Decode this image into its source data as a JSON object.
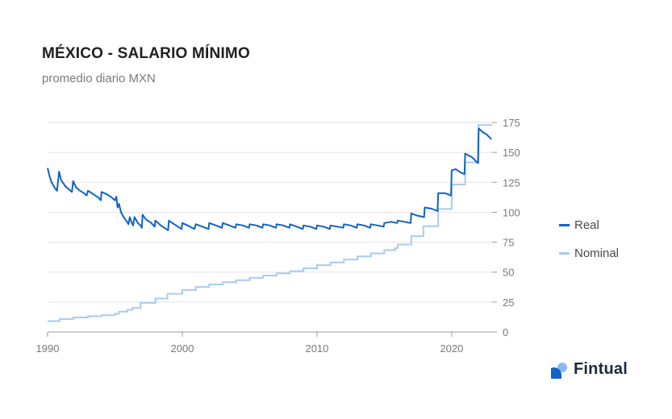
{
  "title": "MÉXICO - SALARIO MÍNIMO",
  "subtitle": "promedio diario MXN",
  "brand": {
    "name": "Fintual",
    "icon": "fintual-logo-icon"
  },
  "colors": {
    "real": "#1262c5",
    "nominal": "#a9cbf1",
    "grid": "#e2e2e2",
    "axis": "#7a7a7a"
  },
  "legend": [
    {
      "label": "Real",
      "color": "#1262c5"
    },
    {
      "label": "Nominal",
      "color": "#a9cbf1"
    }
  ],
  "chart_data": {
    "type": "line",
    "title": "MÉXICO - SALARIO MÍNIMO",
    "subtitle": "promedio diario MXN",
    "xlim": [
      1990,
      2023
    ],
    "ylim": [
      0,
      175
    ],
    "x_ticks": [
      1990,
      2000,
      2010,
      2020
    ],
    "y_ticks": [
      0,
      25,
      50,
      75,
      100,
      125,
      150,
      175
    ],
    "grid": "horizontal",
    "legend_position": "right",
    "series": [
      {
        "name": "Real",
        "color": "#1262c5",
        "points": [
          [
            1990.0,
            137
          ],
          [
            1990.15,
            130
          ],
          [
            1990.3,
            125
          ],
          [
            1990.55,
            120
          ],
          [
            1990.7,
            118
          ],
          [
            1990.85,
            134
          ],
          [
            1991.0,
            127
          ],
          [
            1991.3,
            122
          ],
          [
            1991.6,
            119
          ],
          [
            1991.8,
            117
          ],
          [
            1991.9,
            126
          ],
          [
            1992.1,
            121
          ],
          [
            1992.4,
            118
          ],
          [
            1992.7,
            116
          ],
          [
            1992.9,
            114
          ],
          [
            1993.0,
            118
          ],
          [
            1993.4,
            115
          ],
          [
            1993.8,
            112
          ],
          [
            1993.95,
            110
          ],
          [
            1994.0,
            117
          ],
          [
            1994.4,
            115
          ],
          [
            1994.8,
            112
          ],
          [
            1995.0,
            110
          ],
          [
            1995.1,
            113
          ],
          [
            1995.2,
            104
          ],
          [
            1995.3,
            107
          ],
          [
            1995.45,
            100
          ],
          [
            1995.7,
            95
          ],
          [
            1995.9,
            92
          ],
          [
            1996.0,
            90
          ],
          [
            1996.1,
            96
          ],
          [
            1996.25,
            91
          ],
          [
            1996.35,
            89
          ],
          [
            1996.45,
            96
          ],
          [
            1996.7,
            91
          ],
          [
            1996.9,
            89
          ],
          [
            1997.0,
            87
          ],
          [
            1997.05,
            98
          ],
          [
            1997.3,
            94
          ],
          [
            1997.7,
            91
          ],
          [
            1997.95,
            88
          ],
          [
            1998.0,
            93
          ],
          [
            1998.4,
            89
          ],
          [
            1998.8,
            86
          ],
          [
            1998.95,
            85
          ],
          [
            1999.0,
            93
          ],
          [
            1999.4,
            90
          ],
          [
            1999.8,
            87
          ],
          [
            1999.95,
            86
          ],
          [
            2000.0,
            91
          ],
          [
            2000.4,
            89
          ],
          [
            2000.9,
            86
          ],
          [
            2001.0,
            90
          ],
          [
            2001.5,
            88
          ],
          [
            2001.95,
            86
          ],
          [
            2002.0,
            91
          ],
          [
            2002.5,
            89
          ],
          [
            2002.95,
            87
          ],
          [
            2003.0,
            91
          ],
          [
            2003.5,
            89
          ],
          [
            2003.95,
            87
          ],
          [
            2004.0,
            90
          ],
          [
            2004.5,
            89
          ],
          [
            2004.95,
            87
          ],
          [
            2005.0,
            90
          ],
          [
            2005.5,
            89
          ],
          [
            2005.95,
            87
          ],
          [
            2006.0,
            90
          ],
          [
            2006.5,
            89
          ],
          [
            2006.95,
            87
          ],
          [
            2007.0,
            90
          ],
          [
            2007.5,
            89
          ],
          [
            2007.95,
            87
          ],
          [
            2008.0,
            90
          ],
          [
            2008.5,
            88
          ],
          [
            2008.95,
            86
          ],
          [
            2009.0,
            89
          ],
          [
            2009.5,
            88
          ],
          [
            2009.95,
            86
          ],
          [
            2010.0,
            89
          ],
          [
            2010.5,
            88
          ],
          [
            2010.95,
            86
          ],
          [
            2011.0,
            89
          ],
          [
            2011.5,
            88
          ],
          [
            2011.95,
            87
          ],
          [
            2012.0,
            90
          ],
          [
            2012.5,
            89
          ],
          [
            2012.95,
            87
          ],
          [
            2013.0,
            90
          ],
          [
            2013.5,
            89
          ],
          [
            2013.95,
            87
          ],
          [
            2014.0,
            90
          ],
          [
            2014.5,
            89
          ],
          [
            2014.95,
            88
          ],
          [
            2015.0,
            91
          ],
          [
            2015.5,
            92
          ],
          [
            2015.95,
            91
          ],
          [
            2016.0,
            93
          ],
          [
            2016.5,
            92
          ],
          [
            2016.95,
            91
          ],
          [
            2017.0,
            99
          ],
          [
            2017.5,
            97
          ],
          [
            2017.95,
            96
          ],
          [
            2018.0,
            104
          ],
          [
            2018.5,
            103
          ],
          [
            2018.95,
            101
          ],
          [
            2019.0,
            116
          ],
          [
            2019.5,
            116
          ],
          [
            2019.95,
            114
          ],
          [
            2020.0,
            135
          ],
          [
            2020.3,
            136
          ],
          [
            2020.7,
            133
          ],
          [
            2020.95,
            132
          ],
          [
            2021.0,
            149
          ],
          [
            2021.5,
            146
          ],
          [
            2021.95,
            141
          ],
          [
            2022.0,
            170
          ],
          [
            2022.3,
            167
          ],
          [
            2022.6,
            165
          ],
          [
            2022.95,
            161
          ]
        ]
      },
      {
        "name": "Nominal",
        "color": "#a9cbf1",
        "steps": [
          [
            1990.0,
            9.1
          ],
          [
            1990.9,
            10.8
          ],
          [
            1991.9,
            12.1
          ],
          [
            1993.0,
            13.1
          ],
          [
            1994.0,
            14.0
          ],
          [
            1995.0,
            15.3
          ],
          [
            1995.3,
            17.0
          ],
          [
            1995.9,
            18.5
          ],
          [
            1996.3,
            20.0
          ],
          [
            1996.9,
            24.3
          ],
          [
            1998.0,
            27.9
          ],
          [
            1998.9,
            31.9
          ],
          [
            2000.0,
            35.1
          ],
          [
            2001.0,
            37.6
          ],
          [
            2002.0,
            39.7
          ],
          [
            2003.0,
            41.5
          ],
          [
            2004.0,
            43.3
          ],
          [
            2005.0,
            45.2
          ],
          [
            2006.0,
            47.1
          ],
          [
            2007.0,
            48.9
          ],
          [
            2008.0,
            50.8
          ],
          [
            2009.0,
            53.2
          ],
          [
            2010.0,
            55.8
          ],
          [
            2011.0,
            58.1
          ],
          [
            2012.0,
            60.5
          ],
          [
            2013.0,
            63.1
          ],
          [
            2014.0,
            65.6
          ],
          [
            2015.0,
            68.3
          ],
          [
            2015.8,
            70.1
          ],
          [
            2016.0,
            73.0
          ],
          [
            2017.0,
            80.0
          ],
          [
            2017.9,
            88.4
          ],
          [
            2019.0,
            102.7
          ],
          [
            2020.0,
            123.2
          ],
          [
            2021.0,
            141.7
          ],
          [
            2022.0,
            172.9
          ],
          [
            2023.0,
            172.9
          ]
        ]
      }
    ]
  }
}
